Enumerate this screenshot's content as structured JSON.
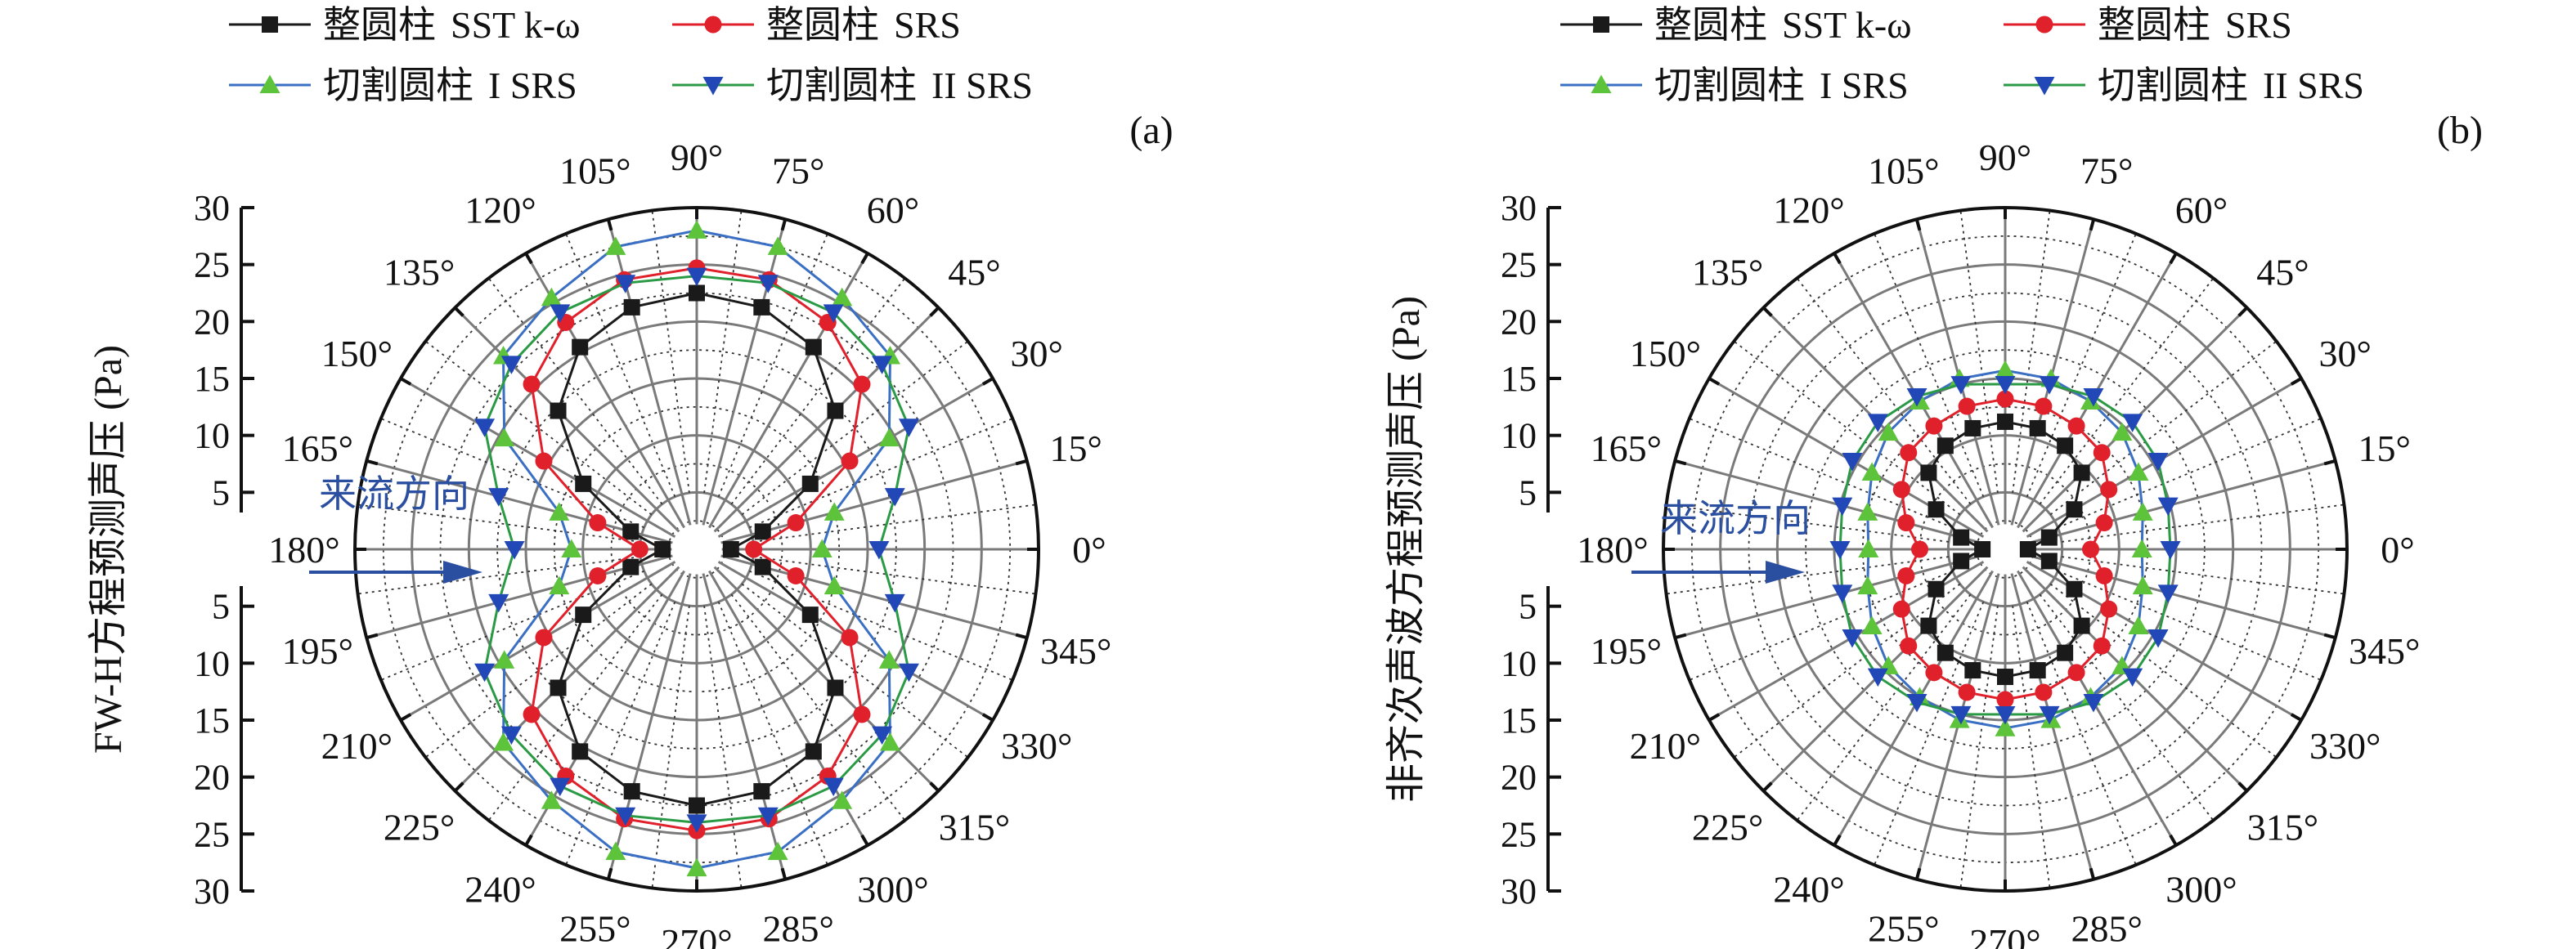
{
  "chart_data": [
    {
      "type": "polar-line",
      "panel_label": "(a)",
      "ylabel": "FW-H方程预测声压 (Pa)",
      "annotation": "来流方向",
      "r_range": [
        0,
        30
      ],
      "r_ticks": [
        5,
        10,
        15,
        20,
        25,
        30
      ],
      "angle_ticks": [
        "0°",
        "15°",
        "30°",
        "45°",
        "60°",
        "75°",
        "90°",
        "105°",
        "120°",
        "135°",
        "150°",
        "165°",
        "180°",
        "195°",
        "210°",
        "225°",
        "240°",
        "255°",
        "270°",
        "285°",
        "300°",
        "315°",
        "330°",
        "345°"
      ],
      "grid": true,
      "legend_placement": "top",
      "angles_deg": [
        0,
        15,
        30,
        45,
        60,
        75,
        90,
        105,
        120,
        135,
        150,
        165,
        180,
        195,
        210,
        225,
        240,
        255,
        270,
        285,
        300,
        315,
        330,
        345
      ],
      "series": [
        {
          "name_prefix": "整圆柱",
          "name_suffix": "SST k-ω",
          "color": "#1a1a1a",
          "marker": "square",
          "values": [
            3.0,
            6.0,
            11.5,
            17.2,
            20.5,
            22.0,
            22.5,
            22.0,
            20.5,
            17.2,
            11.5,
            6.0,
            3.0,
            6.0,
            11.5,
            17.2,
            20.5,
            22.0,
            22.5,
            22.0,
            20.5,
            17.2,
            11.5,
            6.0
          ]
        },
        {
          "name_prefix": "整圆柱",
          "name_suffix": "SRS",
          "color": "#e0202a",
          "marker": "circle",
          "values": [
            5.0,
            9.0,
            15.5,
            20.5,
            23.0,
            24.5,
            24.7,
            24.5,
            23.0,
            20.5,
            15.5,
            9.0,
            5.0,
            9.0,
            15.5,
            20.5,
            23.0,
            24.5,
            24.7,
            24.5,
            23.0,
            20.5,
            15.5,
            9.0
          ]
        },
        {
          "name_prefix": "切割圆柱",
          "name_suffix": "I SRS",
          "color": "#2a5caa",
          "line_color": "#3a6fc4",
          "marker_color": "#5cc33b",
          "marker": "triangle-up",
          "values": [
            11.0,
            12.5,
            19.5,
            24.0,
            25.5,
            27.5,
            28.0,
            27.5,
            25.5,
            24.0,
            19.5,
            12.5,
            11.0,
            12.5,
            19.5,
            24.0,
            25.5,
            27.5,
            28.0,
            27.5,
            25.5,
            24.0,
            19.5,
            12.5
          ]
        },
        {
          "name_prefix": "切割圆柱",
          "name_suffix": "II SRS",
          "color": "#1f9a3a",
          "line_color": "#2a9a45",
          "marker_color": "#2248b8",
          "marker": "triangle-down",
          "values": [
            16.0,
            18.0,
            21.5,
            23.0,
            24.0,
            24.2,
            24.0,
            24.2,
            24.0,
            23.0,
            21.5,
            18.0,
            16.0,
            18.0,
            21.5,
            23.0,
            24.0,
            24.2,
            24.0,
            24.2,
            24.0,
            23.0,
            21.5,
            18.0
          ]
        }
      ]
    },
    {
      "type": "polar-line",
      "panel_label": "(b)",
      "ylabel": "非齐次声波方程预测声压 (Pa)",
      "annotation": "来流方向",
      "r_range": [
        0,
        30
      ],
      "r_ticks": [
        5,
        10,
        15,
        20,
        25,
        30
      ],
      "angle_ticks": [
        "0°",
        "15°",
        "30°",
        "45°",
        "60°",
        "75°",
        "90°",
        "105°",
        "120°",
        "135°",
        "150°",
        "165°",
        "180°",
        "195°",
        "210°",
        "225°",
        "240°",
        "255°",
        "270°",
        "285°",
        "300°",
        "315°",
        "330°",
        "345°"
      ],
      "grid": true,
      "legend_placement": "top",
      "angles_deg": [
        0,
        15,
        30,
        45,
        60,
        75,
        90,
        105,
        120,
        135,
        150,
        165,
        180,
        195,
        210,
        225,
        240,
        255,
        270,
        285,
        300,
        315,
        330,
        345
      ],
      "series": [
        {
          "name_prefix": "整圆柱",
          "name_suffix": "SST k-ω",
          "color": "#1a1a1a",
          "marker": "square",
          "values": [
            2.0,
            4.0,
            7.0,
            9.5,
            10.5,
            11.0,
            11.2,
            11.0,
            10.5,
            9.5,
            7.0,
            4.0,
            2.0,
            4.0,
            7.0,
            9.5,
            10.5,
            11.0,
            11.2,
            11.0,
            10.5,
            9.5,
            7.0,
            4.0
          ]
        },
        {
          "name_prefix": "整圆柱",
          "name_suffix": "SRS",
          "color": "#e0202a",
          "marker": "circle",
          "values": [
            7.5,
            9.0,
            10.5,
            12.0,
            12.5,
            13.0,
            13.2,
            13.0,
            12.5,
            12.0,
            10.5,
            9.0,
            7.5,
            9.0,
            10.5,
            12.0,
            12.5,
            13.0,
            13.2,
            13.0,
            12.5,
            12.0,
            10.5,
            9.0
          ]
        },
        {
          "name_prefix": "切割圆柱",
          "name_suffix": "I SRS",
          "color": "#2a5caa",
          "line_color": "#3a6fc4",
          "marker_color": "#5cc33b",
          "marker": "triangle-up",
          "values": [
            12.0,
            12.5,
            13.5,
            14.5,
            15.0,
            15.5,
            15.7,
            15.5,
            15.0,
            14.5,
            13.5,
            12.5,
            12.0,
            12.5,
            13.5,
            14.5,
            15.0,
            15.5,
            15.7,
            15.5,
            15.0,
            14.5,
            13.5,
            12.5
          ]
        },
        {
          "name_prefix": "切割圆柱",
          "name_suffix": "II SRS",
          "color": "#1f9a3a",
          "line_color": "#2a9a45",
          "marker_color": "#2248b8",
          "marker": "triangle-down",
          "values": [
            14.5,
            14.8,
            15.5,
            15.8,
            15.5,
            15.0,
            14.5,
            15.0,
            15.5,
            15.8,
            15.5,
            14.8,
            14.5,
            14.8,
            15.5,
            15.8,
            15.5,
            15.0,
            14.5,
            15.0,
            15.5,
            15.8,
            15.5,
            14.8
          ]
        }
      ]
    }
  ]
}
